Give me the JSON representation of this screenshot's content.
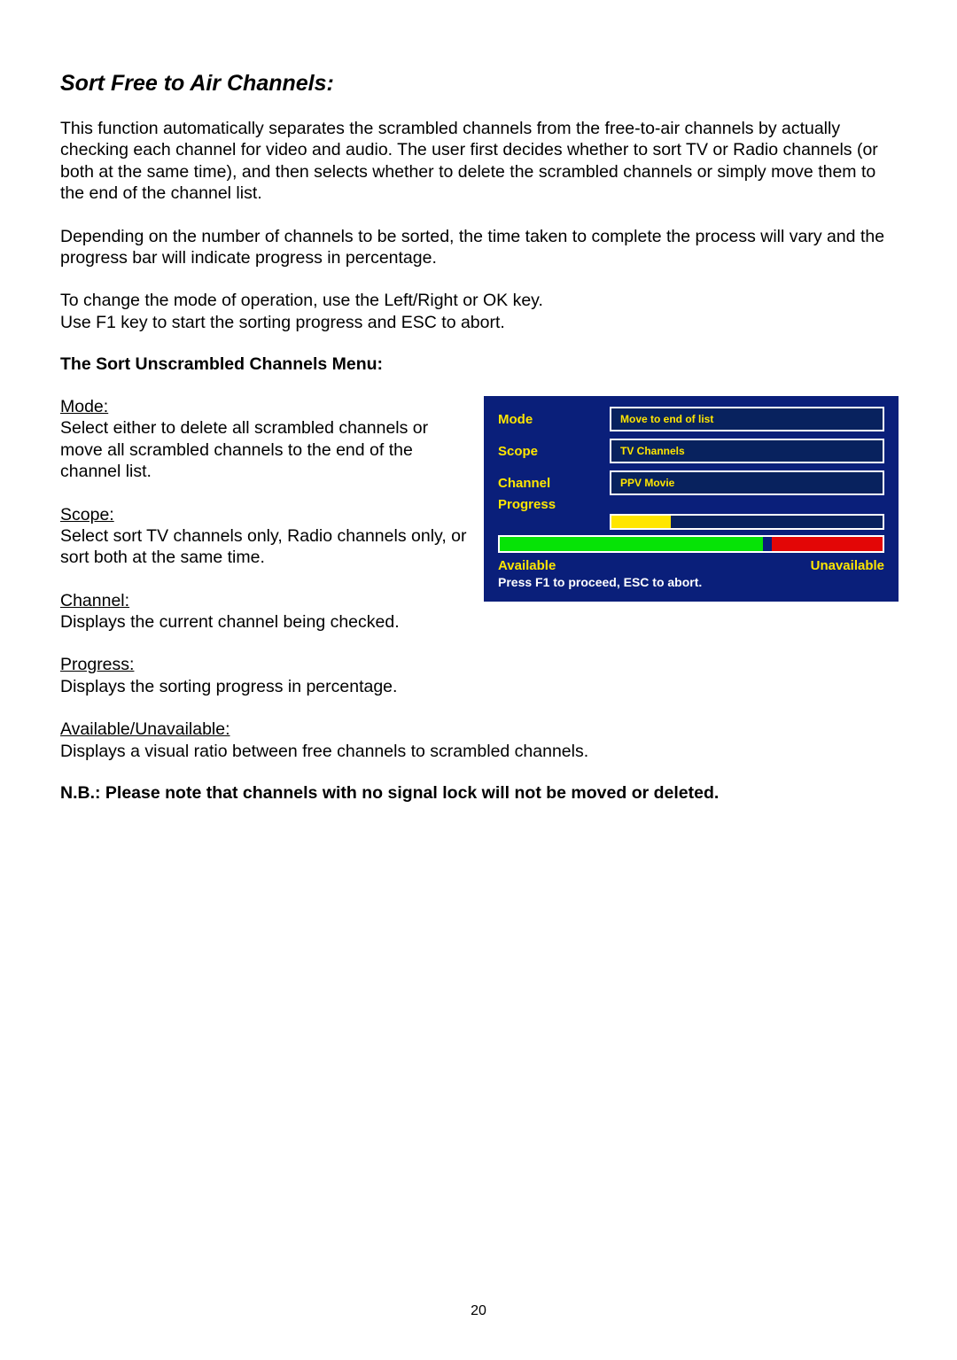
{
  "title": "Sort Free to Air Channels:",
  "paragraphs": {
    "p1": "This function automatically separates the scrambled channels from the free-to-air channels by actually checking each channel for video and audio. The user first decides whether to sort TV or Radio channels (or both at the same time), and then selects whether to delete the scrambled channels or simply move them to the end of the channel list.",
    "p2": "Depending on the number of channels to be sorted, the time taken to complete the process will vary and the progress bar will indicate progress in percentage.",
    "p3a": "To change the mode of operation, use the Left/Right or OK key.",
    "p3b": "Use F1 key to start the sorting progress and ESC to abort."
  },
  "subhead": "The Sort Unscrambled Channels Menu:",
  "defs": {
    "mode_label": "Mode:",
    "mode_text": "Select either to delete all scrambled channels or move all scrambled channels to the end of the channel list.",
    "scope_label": "Scope:",
    "scope_text": "Select sort TV channels only, Radio channels only, or sort both at the same time.",
    "channel_label": "Channel:",
    "channel_text": "Displays the current channel being checked.",
    "progress_label": "Progress:",
    "progress_text": "Displays the sorting progress in percentage.",
    "avail_label": "Available/Unavailable:",
    "avail_text": "Displays a visual ratio between free channels to scrambled channels."
  },
  "nb": "N.B.: Please note that channels with no signal lock will not be moved or deleted.",
  "pagenum": "20",
  "osd": {
    "mode_label": "Mode",
    "mode_value": "Move to end of list",
    "scope_label": "Scope",
    "scope_value": "TV Channels",
    "channel_label": "Channel",
    "channel_value": "PPV Movie",
    "progress_label": "Progress",
    "progress_pct": 22,
    "avail_green_pct": 69,
    "avail_red_pct": 29,
    "available_label": "Available",
    "unavailable_label": "Unavailable",
    "hint": "Press F1 to proceed, ESC to abort.",
    "colors": {
      "panel_bg": "#0a1f7a",
      "field_bg": "#08225e",
      "accent": "#ffe600",
      "border": "#ffffff",
      "green": "#06e306",
      "red": "#e30606"
    }
  }
}
